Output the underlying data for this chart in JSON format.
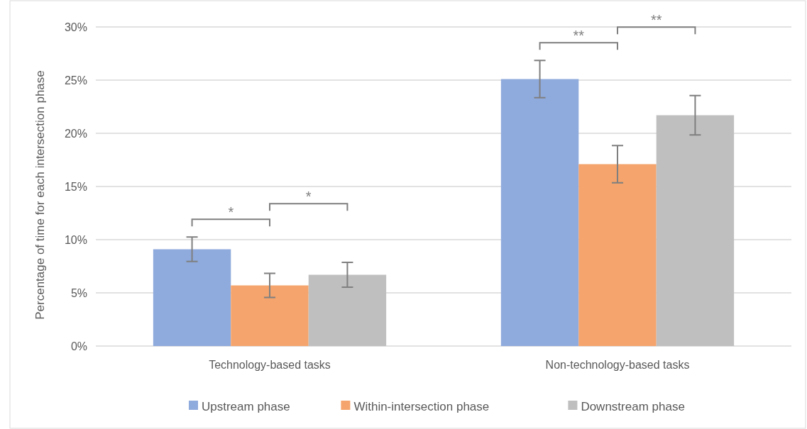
{
  "chart_data": {
    "type": "bar",
    "ylabel": "Percentage of time for each intersection phase",
    "categories": [
      "Technology-based tasks",
      "Non-technology-based tasks"
    ],
    "series": [
      {
        "name": "Upstream phase",
        "color": "#8faadc",
        "values": [
          9.1,
          25.1
        ],
        "errors": [
          1.15,
          1.75
        ]
      },
      {
        "name": "Within-intersection phase",
        "color": "#f4a46c",
        "values": [
          5.7,
          17.1
        ],
        "errors": [
          1.13,
          1.75
        ]
      },
      {
        "name": "Downstream phase",
        "color": "#bfbfbf",
        "values": [
          6.7,
          21.7
        ],
        "errors": [
          1.17,
          1.85
        ]
      }
    ],
    "ylim": [
      0,
      30
    ],
    "yticks": [
      {
        "value": 0,
        "label": "0%"
      },
      {
        "value": 5,
        "label": "5%"
      },
      {
        "value": 10,
        "label": "10%"
      },
      {
        "value": 15,
        "label": "15%"
      },
      {
        "value": 20,
        "label": "20%"
      },
      {
        "value": 25,
        "label": "25%"
      },
      {
        "value": 30,
        "label": "30%"
      }
    ],
    "grid": "y",
    "legend": "bottom",
    "annotations": [
      "*",
      "*",
      "**",
      "**"
    ]
  }
}
